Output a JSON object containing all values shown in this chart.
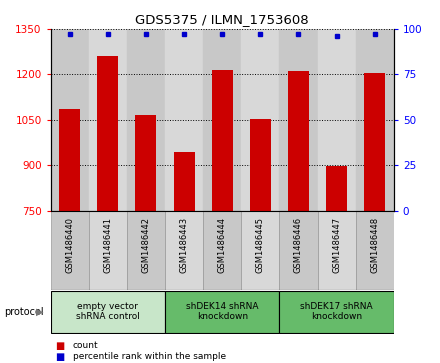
{
  "title": "GDS5375 / ILMN_1753608",
  "samples": [
    "GSM1486440",
    "GSM1486441",
    "GSM1486442",
    "GSM1486443",
    "GSM1486444",
    "GSM1486445",
    "GSM1486446",
    "GSM1486447",
    "GSM1486448"
  ],
  "counts": [
    1085,
    1260,
    1065,
    945,
    1215,
    1052,
    1210,
    898,
    1205
  ],
  "percentiles": [
    97,
    97,
    97,
    97,
    97,
    97,
    97,
    96,
    97
  ],
  "ylim_left": [
    750,
    1350
  ],
  "ylim_right": [
    0,
    100
  ],
  "yticks_left": [
    750,
    900,
    1050,
    1200,
    1350
  ],
  "yticks_right": [
    0,
    25,
    50,
    75,
    100
  ],
  "groups": [
    {
      "label": "empty vector\nshRNA control",
      "start": 0,
      "end": 3,
      "color": "#c8e6c9"
    },
    {
      "label": "shDEK14 shRNA\nknockdown",
      "start": 3,
      "end": 6,
      "color": "#66bb6a"
    },
    {
      "label": "shDEK17 shRNA\nknockdown",
      "start": 6,
      "end": 9,
      "color": "#66bb6a"
    }
  ],
  "col_colors": [
    "#c8c8c8",
    "#d8d8d8",
    "#c8c8c8",
    "#d8d8d8",
    "#c8c8c8",
    "#d8d8d8",
    "#c8c8c8",
    "#d8d8d8",
    "#c8c8c8"
  ],
  "bar_color": "#cc0000",
  "dot_color": "#0000cc",
  "protocol_label": "protocol",
  "legend_count_label": "count",
  "legend_percentile_label": "percentile rank within the sample",
  "bar_width": 0.55,
  "grid_linestyle": "dotted"
}
